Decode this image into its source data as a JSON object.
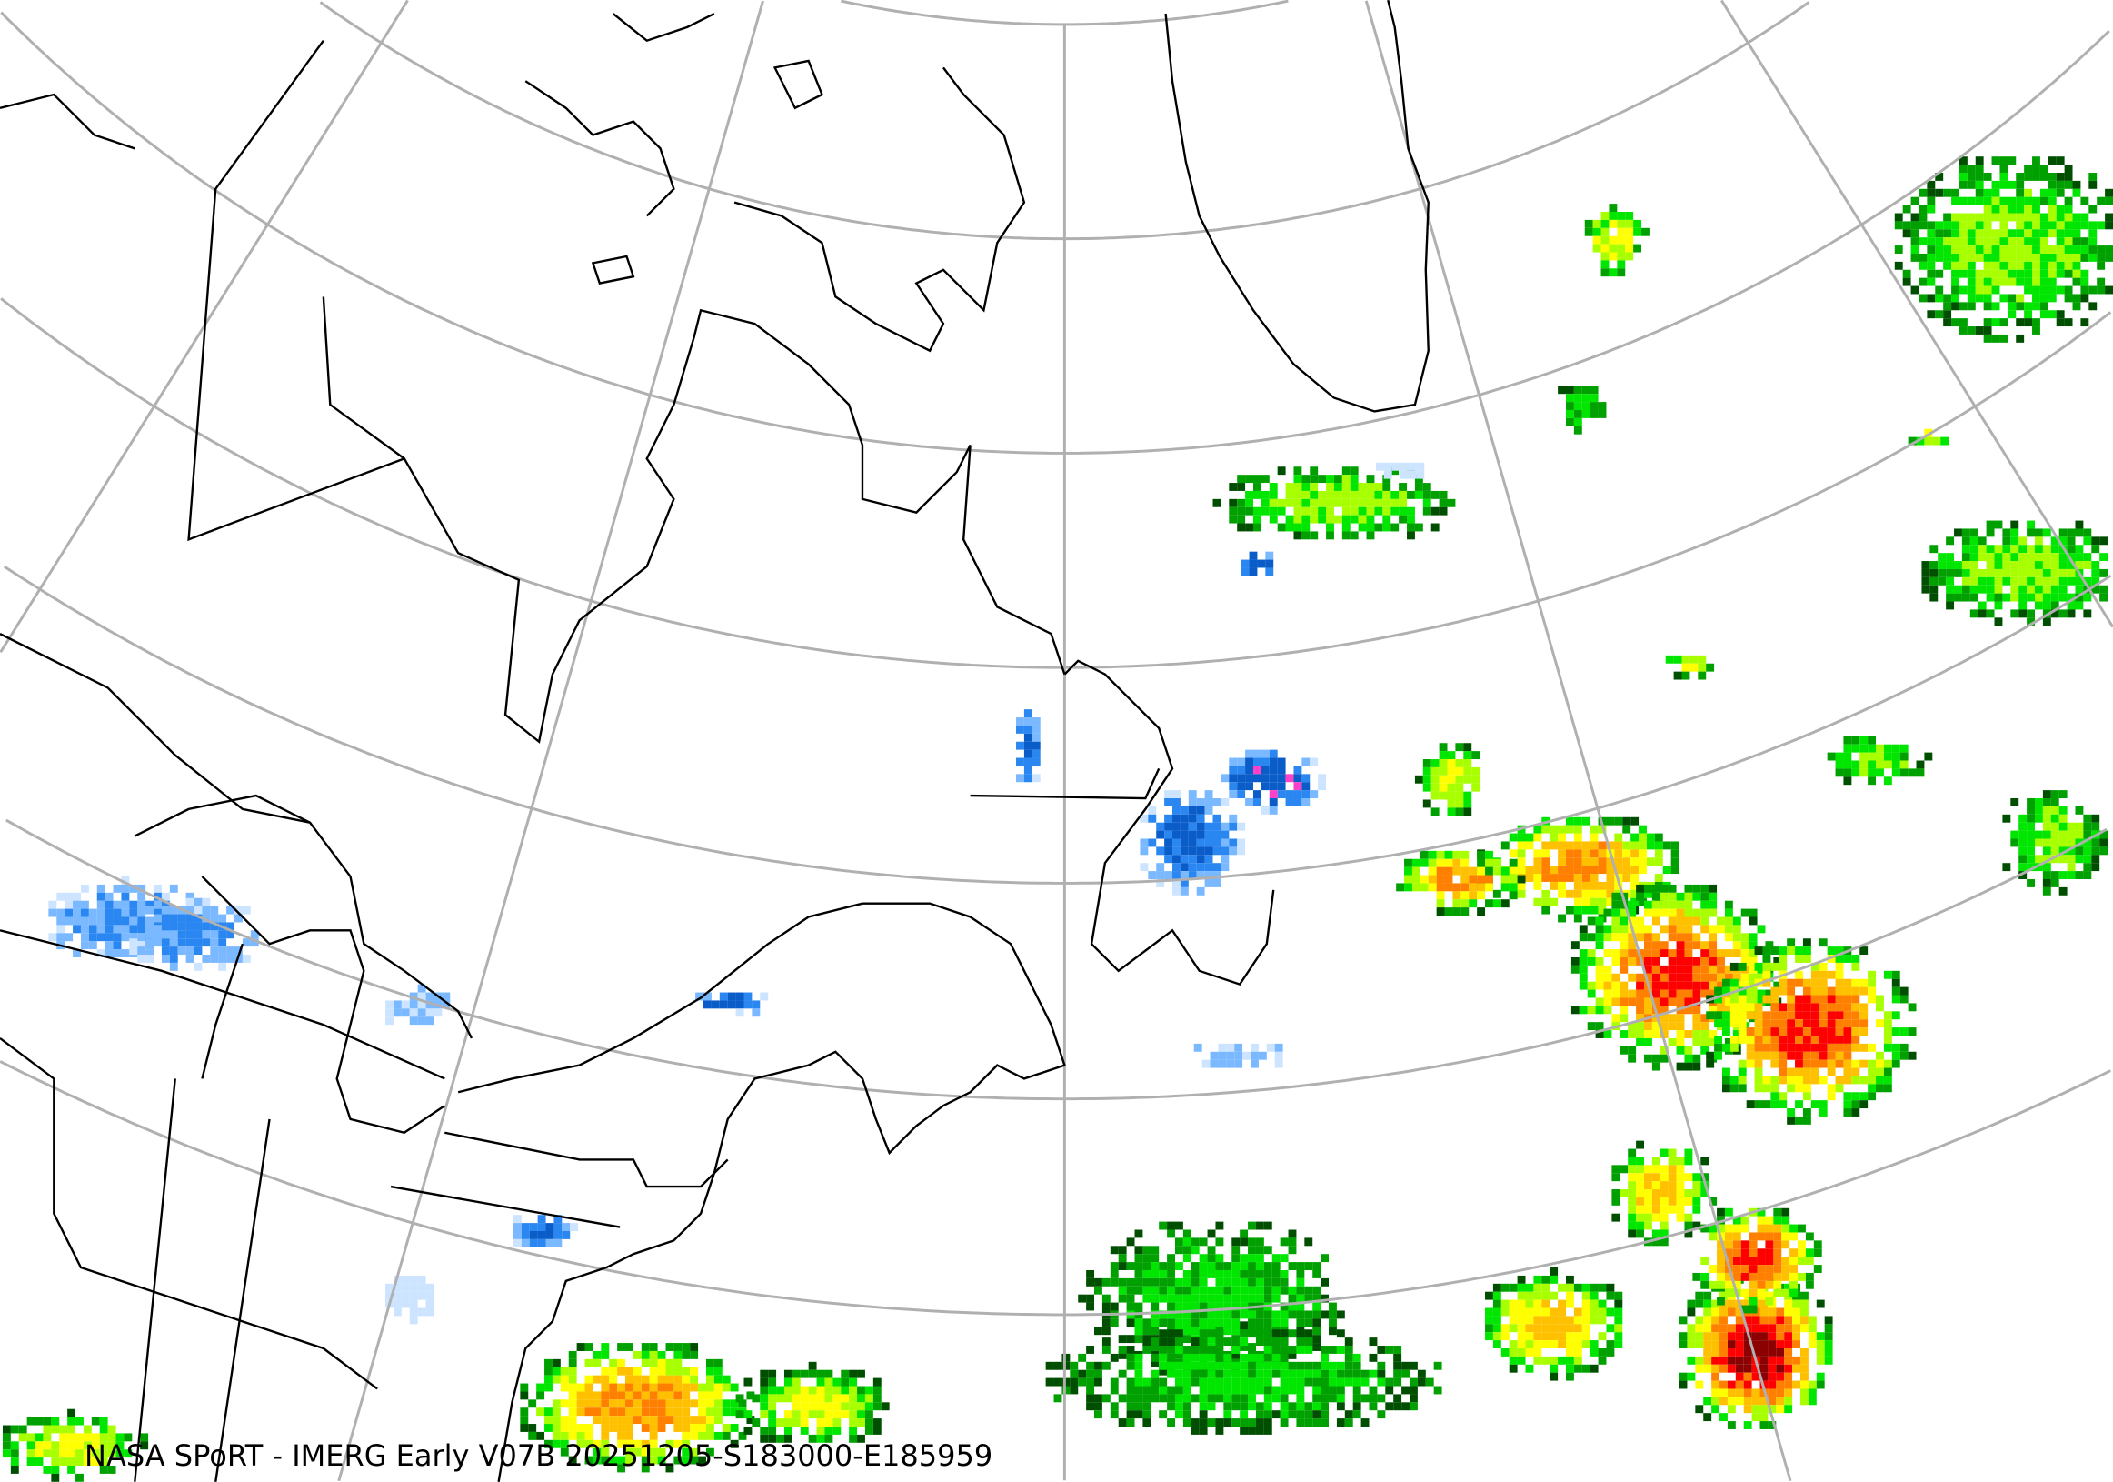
{
  "map": {
    "caption": "NASA SPoRT - IMERG Early V07B 20251205-S183000-E185959",
    "projection": "polar-stereographic",
    "region": "North Atlantic / Eastern Canada / Northeastern US",
    "graticule_color": "#b0b0b0",
    "coastline_color": "#000000",
    "rain_colors": [
      "#004f00",
      "#00a000",
      "#00e600",
      "#a8ff00",
      "#ffff00",
      "#ffc000",
      "#ff8000",
      "#ff0000",
      "#8b0000"
    ],
    "snow_colors": [
      "#cce4ff",
      "#7ab8ff",
      "#2a86f0",
      "#0a5cc8",
      "#ff40c8"
    ]
  }
}
